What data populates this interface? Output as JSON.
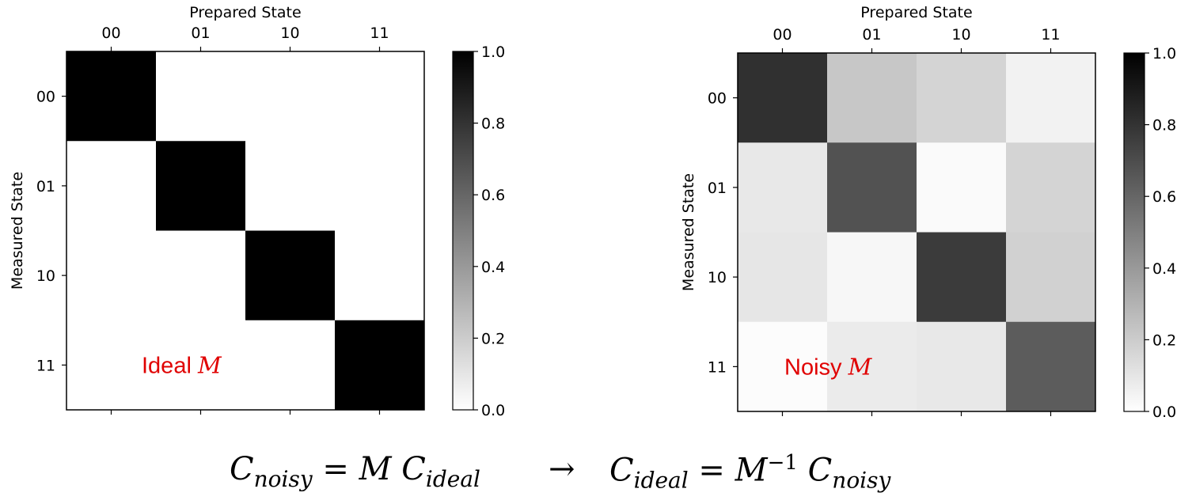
{
  "chart_data": [
    {
      "type": "heatmap",
      "xlabel": "Prepared State",
      "ylabel": "Measured State",
      "x_categories": [
        "00",
        "01",
        "10",
        "11"
      ],
      "y_categories": [
        "00",
        "01",
        "10",
        "11"
      ],
      "values": [
        [
          1.0,
          0.0,
          0.0,
          0.0
        ],
        [
          0.0,
          1.0,
          0.0,
          0.0
        ],
        [
          0.0,
          0.0,
          1.0,
          0.0
        ],
        [
          0.0,
          0.0,
          0.0,
          1.0
        ]
      ],
      "colorbar": {
        "range": [
          0.0,
          1.0
        ],
        "ticks": [
          "0.0",
          "0.2",
          "0.4",
          "0.6",
          "0.8",
          "1.0"
        ]
      },
      "colormap": "Greys",
      "annotation": {
        "text": "Ideal ",
        "math": "M",
        "color": "#e00000"
      }
    },
    {
      "type": "heatmap",
      "xlabel": "Prepared State",
      "ylabel": "Measured State",
      "x_categories": [
        "00",
        "01",
        "10",
        "11"
      ],
      "y_categories": [
        "00",
        "01",
        "10",
        "11"
      ],
      "values": [
        [
          0.81,
          0.22,
          0.17,
          0.05
        ],
        [
          0.09,
          0.68,
          0.02,
          0.17
        ],
        [
          0.1,
          0.03,
          0.77,
          0.18
        ],
        [
          0.01,
          0.08,
          0.09,
          0.64
        ]
      ],
      "colorbar": {
        "range": [
          0.0,
          1.0
        ],
        "ticks": [
          "0.0",
          "0.2",
          "0.4",
          "0.6",
          "0.8",
          "1.0"
        ]
      },
      "colormap": "Greys",
      "annotation": {
        "text": "Noisy ",
        "math": "M",
        "color": "#e00000"
      }
    }
  ],
  "formula": {
    "left": "Cnoisy = M Cideal",
    "arrow": "→",
    "right": "Cideal = M⁻¹ Cnoisy"
  }
}
